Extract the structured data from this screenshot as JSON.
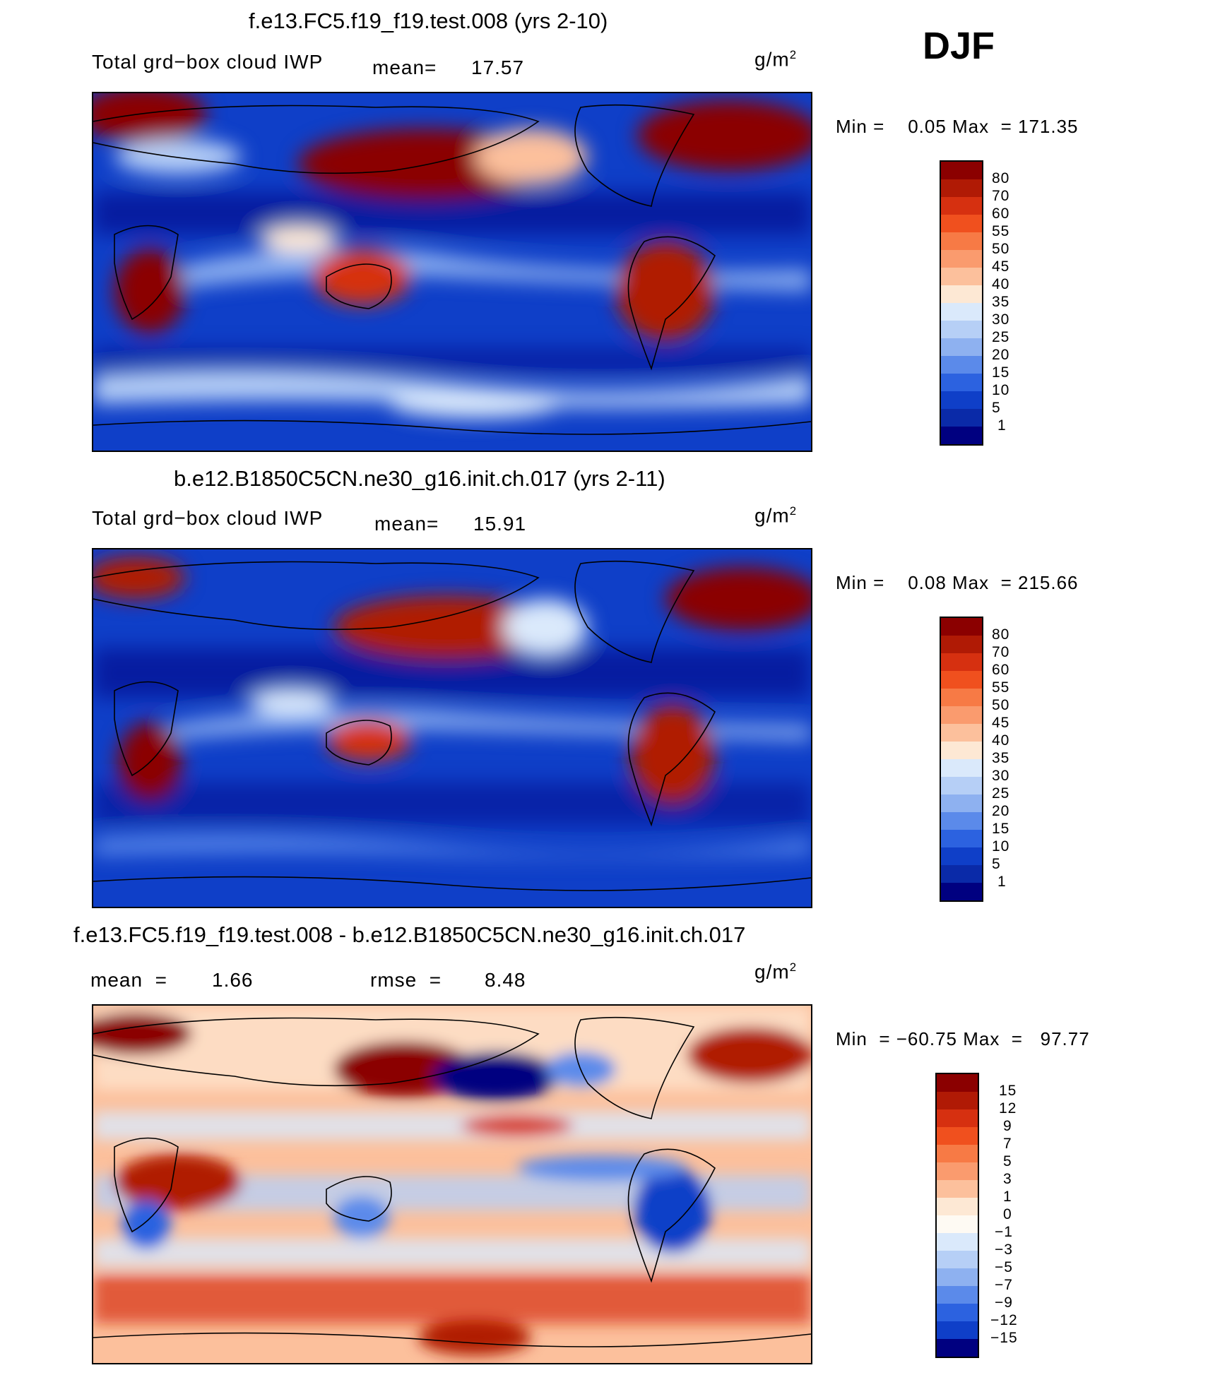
{
  "season": "DJF",
  "units_main": "g/m",
  "units_sup": "2",
  "panels": [
    {
      "title": "f.e13.FC5.f19_f19.test.008 (yrs 2-10)",
      "left_text": "Total grd−box cloud IWP",
      "mean_label": "mean=",
      "mean_value": "17.57",
      "minmax": "Min =    0.05 Max  = 171.35",
      "legend": [
        "80",
        "70",
        "60",
        "55",
        "50",
        "45",
        "40",
        "35",
        "30",
        "25",
        "20",
        "15",
        "10",
        "5",
        "1"
      ]
    },
    {
      "title": "b.e12.B1850C5CN.ne30_g16.init.ch.017 (yrs 2-11)",
      "left_text": "Total grd−box cloud IWP",
      "mean_label": "mean=",
      "mean_value": "15.91",
      "minmax": "Min =    0.08 Max  = 215.66",
      "legend": [
        "80",
        "70",
        "60",
        "55",
        "50",
        "45",
        "40",
        "35",
        "30",
        "25",
        "20",
        "15",
        "10",
        "5",
        "1"
      ]
    },
    {
      "title": "f.e13.FC5.f19_f19.test.008 - b.e12.B1850C5CN.ne30_g16.init.ch.017",
      "mean_label": "mean  =",
      "mean_value": "1.66",
      "rmse_label": "rmse  =",
      "rmse_value": "8.48",
      "minmax": "Min  = −60.75 Max  =   97.77",
      "legend": [
        "15",
        "12",
        "9",
        "7",
        "5",
        "3",
        "1",
        "0",
        "−1",
        "−3",
        "−5",
        "−7",
        "−9",
        "−12",
        "−15"
      ]
    }
  ],
  "colors": {
    "abs": [
      "#8b0000",
      "#b01a05",
      "#d63010",
      "#f0501e",
      "#f77a45",
      "#fa9b6e",
      "#fcc09c",
      "#fde8d4",
      "#dae9fb",
      "#b6cff6",
      "#8eb1f0",
      "#5b8aea",
      "#2c62e0",
      "#0f3fc8",
      "#0a2aa8",
      "#000080"
    ],
    "diff": [
      "#8b0000",
      "#b01a05",
      "#d63010",
      "#f0501e",
      "#f77a45",
      "#fa9b6e",
      "#fcc09c",
      "#fde8d4",
      "#fefaf3",
      "#dae9fb",
      "#b6cff6",
      "#8eb1f0",
      "#5b8aea",
      "#2c62e0",
      "#0f3fc8",
      "#000080"
    ]
  }
}
